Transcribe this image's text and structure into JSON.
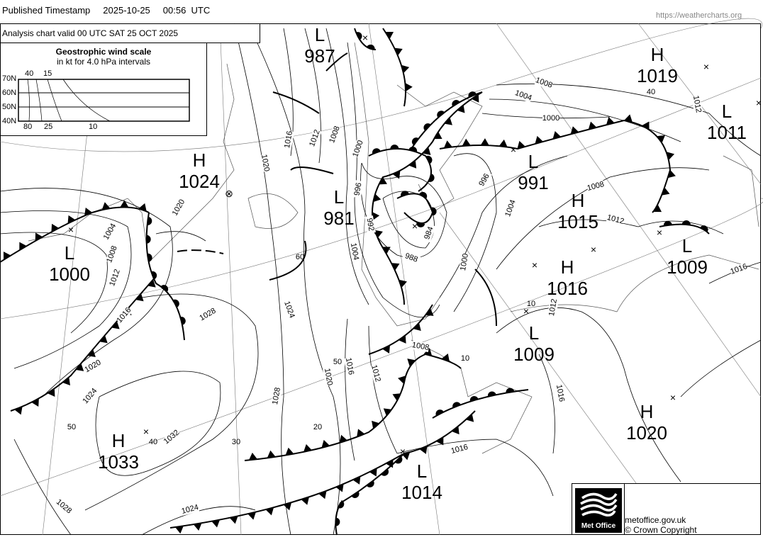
{
  "header": {
    "label": "Published Timestamp",
    "date": "2025-10-25",
    "time": "00:56  UTC",
    "url": "https://weathercharts.org"
  },
  "chart_title": "Analysis chart  valid 00 UTC SAT 25  OCT 2025",
  "wind_scale": {
    "title": "Geostrophic wind scale",
    "subtitle": "in kt for 4.0 hPa intervals",
    "lat_labels": [
      "70N",
      "60N",
      "50N",
      "40N"
    ],
    "top_labels": [
      "40",
      "15"
    ],
    "bottom_labels": [
      "80",
      "25",
      "10"
    ]
  },
  "pressure_systems": [
    {
      "type": "L",
      "value": "987"
    },
    {
      "type": "H",
      "value": "1019"
    },
    {
      "type": "L",
      "value": "1011"
    },
    {
      "type": "H",
      "value": "1024"
    },
    {
      "type": "L",
      "value": "981"
    },
    {
      "type": "L",
      "value": "991"
    },
    {
      "type": "H",
      "value": "1015"
    },
    {
      "type": "L",
      "value": "1000"
    },
    {
      "type": "L",
      "value": "1009"
    },
    {
      "type": "H",
      "value": "1016"
    },
    {
      "type": "L",
      "value": "1009"
    },
    {
      "type": "H",
      "value": "1033"
    },
    {
      "type": "H",
      "value": "1020"
    },
    {
      "type": "L",
      "value": "1014"
    }
  ],
  "isobar_labels": [
    "1008",
    "1004",
    "1000",
    "1012",
    "1016",
    "1012",
    "1008",
    "1000",
    "1020",
    "996",
    "992",
    "1004",
    "988",
    "984",
    "996",
    "1004",
    "1008",
    "1012",
    "1000",
    "1016",
    "1012",
    "1004",
    "1008",
    "1012",
    "1016",
    "1020",
    "1024",
    "1020",
    "1028",
    "1024",
    "1016",
    "1020",
    "1012",
    "1028",
    "1032",
    "1008",
    "1016",
    "1016",
    "1024",
    "1028"
  ],
  "latitude_labels": [
    "60",
    "50",
    "40",
    "30",
    "20",
    "10",
    "50",
    "40",
    "10"
  ],
  "footer": {
    "logo_text": "Met Office",
    "site": "metoffice.gov.uk",
    "copyright": "© Crown Copyright"
  }
}
